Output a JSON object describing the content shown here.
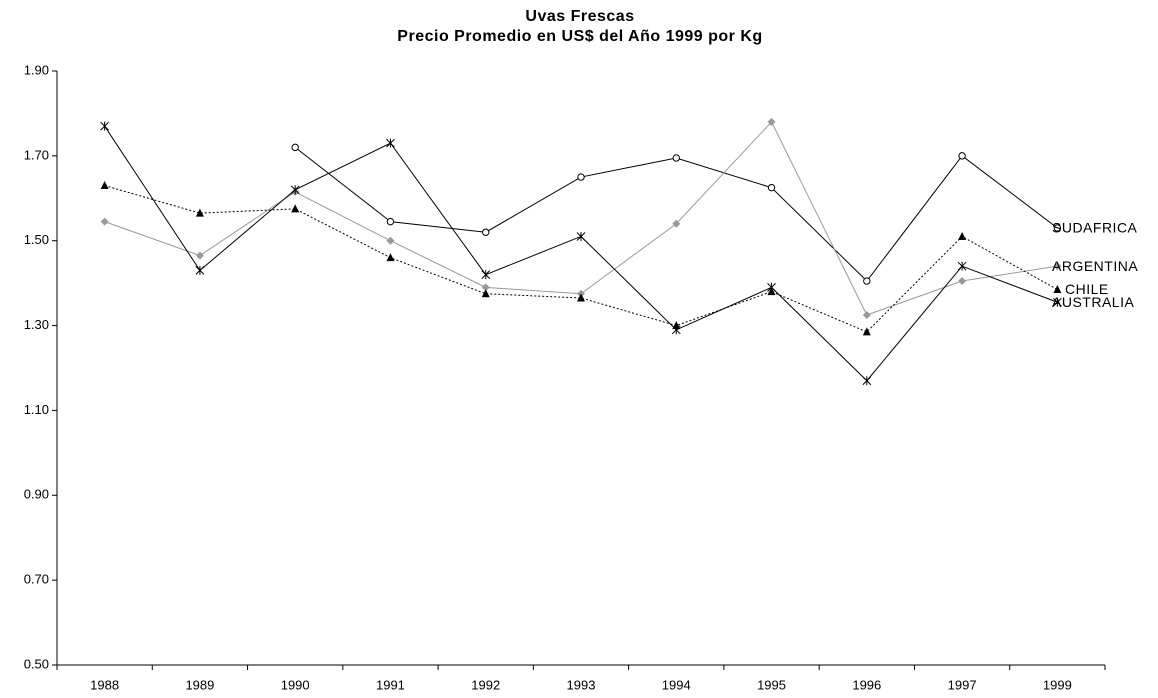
{
  "chart_data": {
    "type": "line",
    "title": "Uvas Frescas",
    "subtitle": "Precio Promedio en US$ del Año 1999 por Kg",
    "categories": [
      "1988",
      "1989",
      "1990",
      "1991",
      "1992",
      "1993",
      "1994",
      "1995",
      "1996",
      "1997",
      "1999"
    ],
    "series": [
      {
        "name": "SUDAFRICA",
        "color": "#000000",
        "marker": "circle",
        "dash": "solid",
        "values": [
          null,
          null,
          1.72,
          1.545,
          1.52,
          1.65,
          1.695,
          1.625,
          1.405,
          1.7,
          1.53
        ]
      },
      {
        "name": "ARGENTINA",
        "color": "#999999",
        "marker": "diamond",
        "dash": "solid",
        "values": [
          1.545,
          1.465,
          1.615,
          1.5,
          1.39,
          1.375,
          1.54,
          1.78,
          1.325,
          1.405,
          1.44
        ]
      },
      {
        "name": "CHILE",
        "color": "#000000",
        "marker": "triangle",
        "dash": "dotted",
        "values": [
          1.63,
          1.565,
          1.575,
          1.46,
          1.375,
          1.365,
          1.3,
          1.38,
          1.285,
          1.51,
          1.385
        ]
      },
      {
        "name": "AUSTRALIA",
        "color": "#000000",
        "marker": "asterisk",
        "dash": "solid",
        "values": [
          1.77,
          1.43,
          1.62,
          1.73,
          1.42,
          1.51,
          1.29,
          1.39,
          1.17,
          1.44,
          1.355
        ]
      }
    ],
    "ylim": [
      0.5,
      1.9
    ],
    "yticks": [
      {
        "value": 0.5,
        "label": "0.50"
      },
      {
        "value": 0.7,
        "label": "0.70"
      },
      {
        "value": 0.9,
        "label": "0.90"
      },
      {
        "value": 1.1,
        "label": "1.10"
      },
      {
        "value": 1.3,
        "label": "1.30"
      },
      {
        "value": 1.5,
        "label": "1.50"
      },
      {
        "value": 1.7,
        "label": "1.70"
      },
      {
        "value": 1.9,
        "label": "1.90"
      }
    ],
    "grid": false
  }
}
